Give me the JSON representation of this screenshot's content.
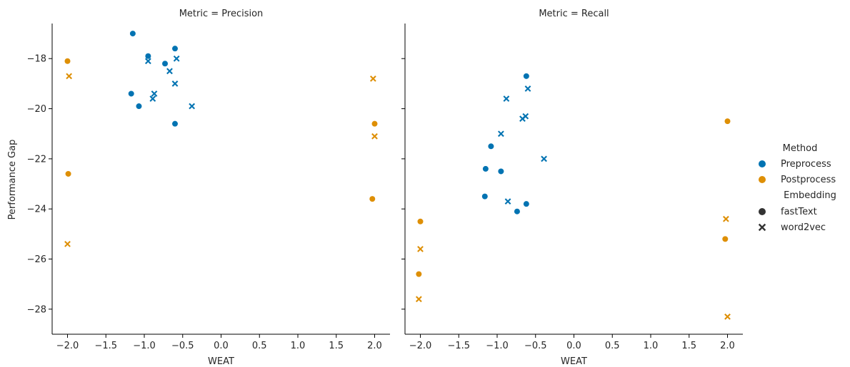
{
  "figure": {
    "y_label": "Performance Gap",
    "legend": {
      "method_title": "Method",
      "methods": [
        {
          "label": "Preprocess",
          "color": "#0173b2"
        },
        {
          "label": "Postprocess",
          "color": "#de8f05"
        }
      ],
      "embedding_title": "Embedding",
      "embeddings": [
        {
          "label": "fastText",
          "marker": "circle"
        },
        {
          "label": "word2vec",
          "marker": "x"
        }
      ]
    }
  },
  "chart_data": [
    {
      "type": "scatter",
      "title": "Metric = Precision",
      "xlabel": "WEAT",
      "ylabel": "Performance Gap",
      "xlim": [
        -2.2,
        2.2
      ],
      "ylim": [
        -29,
        -16.6
      ],
      "xticks": [
        -2.0,
        -1.5,
        -1.0,
        -0.5,
        0.0,
        0.5,
        1.0,
        1.5,
        2.0
      ],
      "yticks": [
        -18,
        -20,
        -22,
        -24,
        -26,
        -28
      ],
      "series": [
        {
          "method": "Preprocess",
          "embedding": "fastText",
          "color": "#0173b2",
          "marker": "circle",
          "points": [
            [
              -1.15,
              -17.0
            ],
            [
              -0.95,
              -17.9
            ],
            [
              -0.6,
              -17.6
            ],
            [
              -0.73,
              -18.2
            ],
            [
              -1.17,
              -19.4
            ],
            [
              -1.07,
              -19.9
            ],
            [
              -0.6,
              -20.6
            ]
          ]
        },
        {
          "method": "Preprocess",
          "embedding": "word2vec",
          "color": "#0173b2",
          "marker": "x",
          "points": [
            [
              -0.95,
              -18.1
            ],
            [
              -0.58,
              -18.0
            ],
            [
              -0.67,
              -18.5
            ],
            [
              -0.6,
              -19.0
            ],
            [
              -0.87,
              -19.4
            ],
            [
              -0.89,
              -19.6
            ],
            [
              -0.38,
              -19.9
            ]
          ]
        },
        {
          "method": "Postprocess",
          "embedding": "fastText",
          "color": "#de8f05",
          "marker": "circle",
          "points": [
            [
              -2.0,
              -18.1
            ],
            [
              -1.99,
              -22.6
            ],
            [
              2.0,
              -20.6
            ],
            [
              1.97,
              -23.6
            ]
          ]
        },
        {
          "method": "Postprocess",
          "embedding": "word2vec",
          "color": "#de8f05",
          "marker": "x",
          "points": [
            [
              -1.98,
              -18.7
            ],
            [
              -2.0,
              -25.4
            ],
            [
              1.98,
              -18.8
            ],
            [
              2.0,
              -21.1
            ]
          ]
        }
      ]
    },
    {
      "type": "scatter",
      "title": "Metric = Recall",
      "xlabel": "WEAT",
      "ylabel": "",
      "xlim": [
        -2.2,
        2.2
      ],
      "ylim": [
        -29,
        -16.6
      ],
      "xticks": [
        -2.0,
        -1.5,
        -1.0,
        -0.5,
        0.0,
        0.5,
        1.0,
        1.5,
        2.0
      ],
      "yticks": [
        -18,
        -20,
        -22,
        -24,
        -26,
        -28
      ],
      "series": [
        {
          "method": "Preprocess",
          "embedding": "fastText",
          "color": "#0173b2",
          "marker": "circle",
          "points": [
            [
              -0.62,
              -18.7
            ],
            [
              -1.08,
              -21.5
            ],
            [
              -1.15,
              -22.4
            ],
            [
              -0.95,
              -22.5
            ],
            [
              -1.16,
              -23.5
            ],
            [
              -0.62,
              -23.8
            ],
            [
              -0.74,
              -24.1
            ]
          ]
        },
        {
          "method": "Preprocess",
          "embedding": "word2vec",
          "color": "#0173b2",
          "marker": "x",
          "points": [
            [
              -0.6,
              -19.2
            ],
            [
              -0.88,
              -19.6
            ],
            [
              -0.63,
              -20.3
            ],
            [
              -0.67,
              -20.4
            ],
            [
              -0.95,
              -21.0
            ],
            [
              -0.39,
              -22.0
            ],
            [
              -0.86,
              -23.7
            ]
          ]
        },
        {
          "method": "Postprocess",
          "embedding": "fastText",
          "color": "#de8f05",
          "marker": "circle",
          "points": [
            [
              -2.0,
              -24.5
            ],
            [
              -2.02,
              -26.6
            ],
            [
              2.0,
              -20.5
            ],
            [
              1.97,
              -25.2
            ]
          ]
        },
        {
          "method": "Postprocess",
          "embedding": "word2vec",
          "color": "#de8f05",
          "marker": "x",
          "points": [
            [
              -2.0,
              -25.6
            ],
            [
              -2.02,
              -27.6
            ],
            [
              1.98,
              -24.4
            ],
            [
              2.0,
              -28.3
            ]
          ]
        }
      ]
    }
  ]
}
